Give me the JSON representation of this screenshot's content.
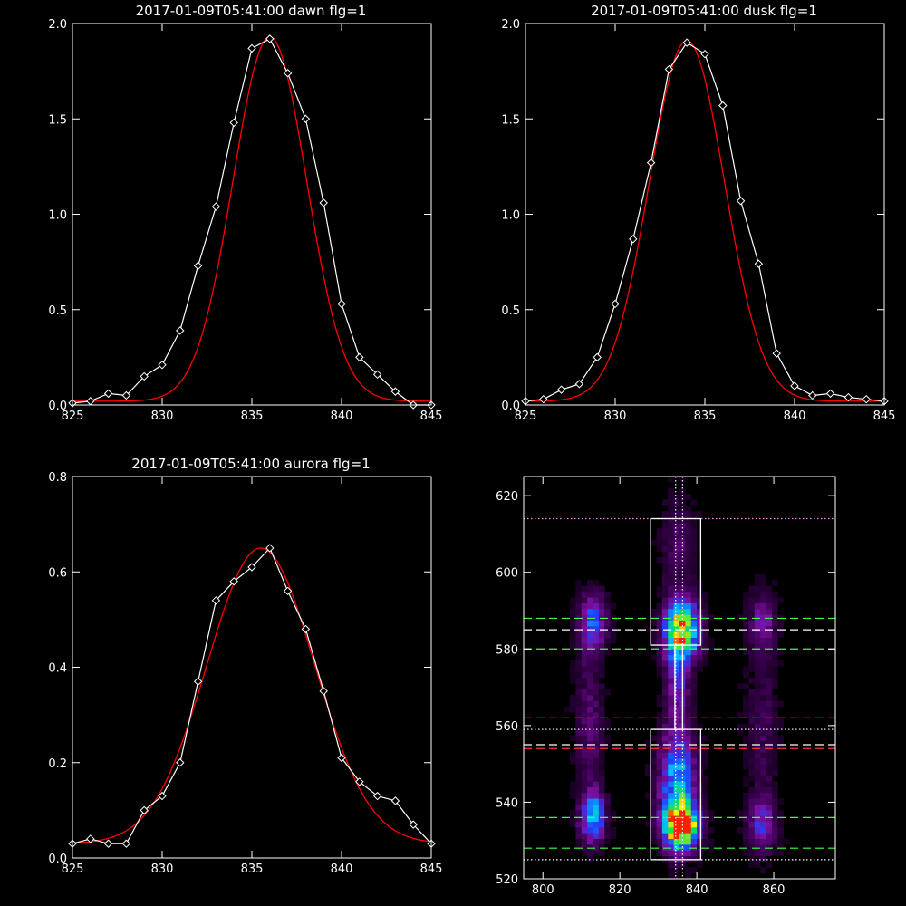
{
  "chart_data": [
    {
      "type": "line",
      "title": "2017-01-09T05:41:00 dawn flg=1",
      "xlim": [
        825,
        845
      ],
      "ylim": [
        0,
        2.0
      ],
      "x_ticks": [
        "825",
        "830",
        "835",
        "840",
        "845"
      ],
      "y_ticks": [
        "0.0",
        "0.5",
        "1.0",
        "1.5",
        "2.0"
      ],
      "x_tick_values": [
        825,
        830,
        835,
        840,
        845
      ],
      "y_tick_values": [
        0,
        0.5,
        1.0,
        1.5,
        2.0
      ],
      "series": [
        {
          "kind": "measured",
          "color": "#ffffff",
          "x": [
            825,
            826,
            827,
            828,
            829,
            830,
            831,
            832,
            833,
            834,
            835,
            836,
            837,
            838,
            839,
            840,
            841,
            842,
            843,
            844,
            845
          ],
          "y": [
            0.01,
            0.02,
            0.06,
            0.05,
            0.15,
            0.21,
            0.39,
            0.73,
            1.04,
            1.48,
            1.87,
            1.92,
            1.74,
            1.5,
            1.06,
            0.53,
            0.25,
            0.16,
            0.07,
            0.0,
            0.0
          ]
        },
        {
          "kind": "fit",
          "color": "#ff0000",
          "model": "gaussian",
          "amp": 1.91,
          "center": 836.0,
          "sigma": 2.05,
          "offset": 0.02
        }
      ]
    },
    {
      "type": "line",
      "title": "2017-01-09T05:41:00 dusk flg=1",
      "xlim": [
        825,
        845
      ],
      "ylim": [
        0,
        2.0
      ],
      "x_ticks": [
        "825",
        "830",
        "835",
        "840",
        "845"
      ],
      "y_ticks": [
        "0.0",
        "0.5",
        "1.0",
        "1.5",
        "2.0"
      ],
      "x_tick_values": [
        825,
        830,
        835,
        840,
        845
      ],
      "y_tick_values": [
        0,
        0.5,
        1.0,
        1.5,
        2.0
      ],
      "series": [
        {
          "kind": "measured",
          "color": "#ffffff",
          "x": [
            825,
            826,
            827,
            828,
            829,
            830,
            831,
            832,
            833,
            834,
            835,
            836,
            837,
            838,
            839,
            840,
            841,
            842,
            843,
            844,
            845
          ],
          "y": [
            0.02,
            0.03,
            0.08,
            0.11,
            0.25,
            0.53,
            0.87,
            1.27,
            1.76,
            1.9,
            1.84,
            1.57,
            1.07,
            0.74,
            0.27,
            0.1,
            0.05,
            0.06,
            0.04,
            0.03,
            0.02
          ]
        },
        {
          "kind": "fit",
          "color": "#ff0000",
          "model": "gaussian",
          "amp": 1.89,
          "center": 834.0,
          "sigma": 2.1,
          "offset": 0.02
        }
      ]
    },
    {
      "type": "line",
      "title": "2017-01-09T05:41:00 aurora flg=1",
      "xlim": [
        825,
        845
      ],
      "ylim": [
        0,
        0.8
      ],
      "x_ticks": [
        "825",
        "830",
        "835",
        "840",
        "845"
      ],
      "y_ticks": [
        "0.0",
        "0.2",
        "0.4",
        "0.6",
        "0.8"
      ],
      "x_tick_values": [
        825,
        830,
        835,
        840,
        845
      ],
      "y_tick_values": [
        0,
        0.2,
        0.4,
        0.6,
        0.8
      ],
      "series": [
        {
          "kind": "measured",
          "color": "#ffffff",
          "x": [
            825,
            826,
            827,
            828,
            829,
            830,
            831,
            832,
            833,
            834,
            835,
            836,
            837,
            838,
            839,
            840,
            841,
            842,
            843,
            844,
            845
          ],
          "y": [
            0.03,
            0.04,
            0.03,
            0.03,
            0.1,
            0.13,
            0.2,
            0.37,
            0.54,
            0.58,
            0.61,
            0.65,
            0.56,
            0.48,
            0.35,
            0.21,
            0.16,
            0.13,
            0.12,
            0.07,
            0.03
          ]
        },
        {
          "kind": "fit",
          "color": "#ff0000",
          "model": "gaussian",
          "amp": 0.62,
          "center": 835.5,
          "sigma": 3.0,
          "offset": 0.03
        }
      ]
    },
    {
      "type": "heatmap",
      "title": "",
      "xlim": [
        795,
        876
      ],
      "ylim": [
        520,
        625
      ],
      "x_ticks": [
        "800",
        "820",
        "840",
        "860"
      ],
      "y_ticks": [
        "520",
        "540",
        "560",
        "580",
        "600",
        "620"
      ],
      "x_tick_values": [
        800,
        820,
        840,
        860
      ],
      "y_tick_values": [
        520,
        540,
        560,
        580,
        600,
        620
      ],
      "colormap": [
        "#000000",
        "#3a0050",
        "#7a10a0",
        "#2040ff",
        "#00c0ff",
        "#00e060",
        "#f0f000",
        "#ff2000"
      ],
      "sources": [
        {
          "x": 836,
          "y": 585,
          "sx": 3.0,
          "sy": 5.5,
          "amp": 0.95
        },
        {
          "x": 836,
          "y": 534,
          "sx": 3.0,
          "sy": 4.0,
          "amp": 1.0
        },
        {
          "x": 835,
          "y": 545,
          "sx": 3.2,
          "sy": 10.0,
          "amp": 0.55
        },
        {
          "x": 835,
          "y": 571,
          "sx": 2.0,
          "sy": 6.0,
          "amp": 0.3
        },
        {
          "x": 813,
          "y": 536,
          "sx": 2.2,
          "sy": 4.5,
          "amp": 0.55
        },
        {
          "x": 813,
          "y": 587,
          "sx": 2.5,
          "sy": 5.0,
          "amp": 0.4
        },
        {
          "x": 812,
          "y": 560,
          "sx": 2.5,
          "sy": 14.0,
          "amp": 0.17
        },
        {
          "x": 857,
          "y": 534,
          "sx": 2.5,
          "sy": 5.0,
          "amp": 0.3
        },
        {
          "x": 857,
          "y": 587,
          "sx": 2.5,
          "sy": 5.0,
          "amp": 0.25
        },
        {
          "x": 857,
          "y": 560,
          "sx": 3.0,
          "sy": 16.0,
          "amp": 0.12
        },
        {
          "x": 835,
          "y": 608,
          "sx": 3.0,
          "sy": 8.0,
          "amp": 0.15
        }
      ],
      "boxes": [
        {
          "x0": 828,
          "x1": 841,
          "y0": 581,
          "y1": 614,
          "color": "#ffffff"
        },
        {
          "x0": 828,
          "x1": 841,
          "y0": 525,
          "y1": 559,
          "color": "#ffffff"
        },
        {
          "x0": 834.3,
          "x1": 836.3,
          "y0": 559,
          "y1": 581,
          "color": "#ffffff"
        }
      ],
      "hlines": [
        {
          "y": 614,
          "color": "#ff80ff",
          "style": "dotted"
        },
        {
          "y": 588,
          "color": "#40ff40",
          "style": "dashed"
        },
        {
          "y": 585,
          "color": "#ffffff",
          "style": "dashed"
        },
        {
          "y": 580,
          "color": "#40ff40",
          "style": "dashed"
        },
        {
          "y": 562,
          "color": "#ff3030",
          "style": "dashed"
        },
        {
          "y": 559,
          "color": "#ffffff",
          "style": "dotted"
        },
        {
          "y": 555,
          "color": "#ffffff",
          "style": "dashed"
        },
        {
          "y": 554,
          "color": "#ff3030",
          "style": "dashed"
        },
        {
          "y": 536,
          "color": "#40ff40",
          "style": "dashed"
        },
        {
          "y": 528,
          "color": "#40ff40",
          "style": "dashed"
        },
        {
          "y": 525,
          "color": "#ffffff",
          "style": "dotted"
        }
      ],
      "vlines": [
        {
          "x": 834.5,
          "color": "#ffffff",
          "style": "dotted"
        },
        {
          "x": 836.3,
          "color": "#ffffff",
          "style": "dotted"
        }
      ]
    }
  ]
}
